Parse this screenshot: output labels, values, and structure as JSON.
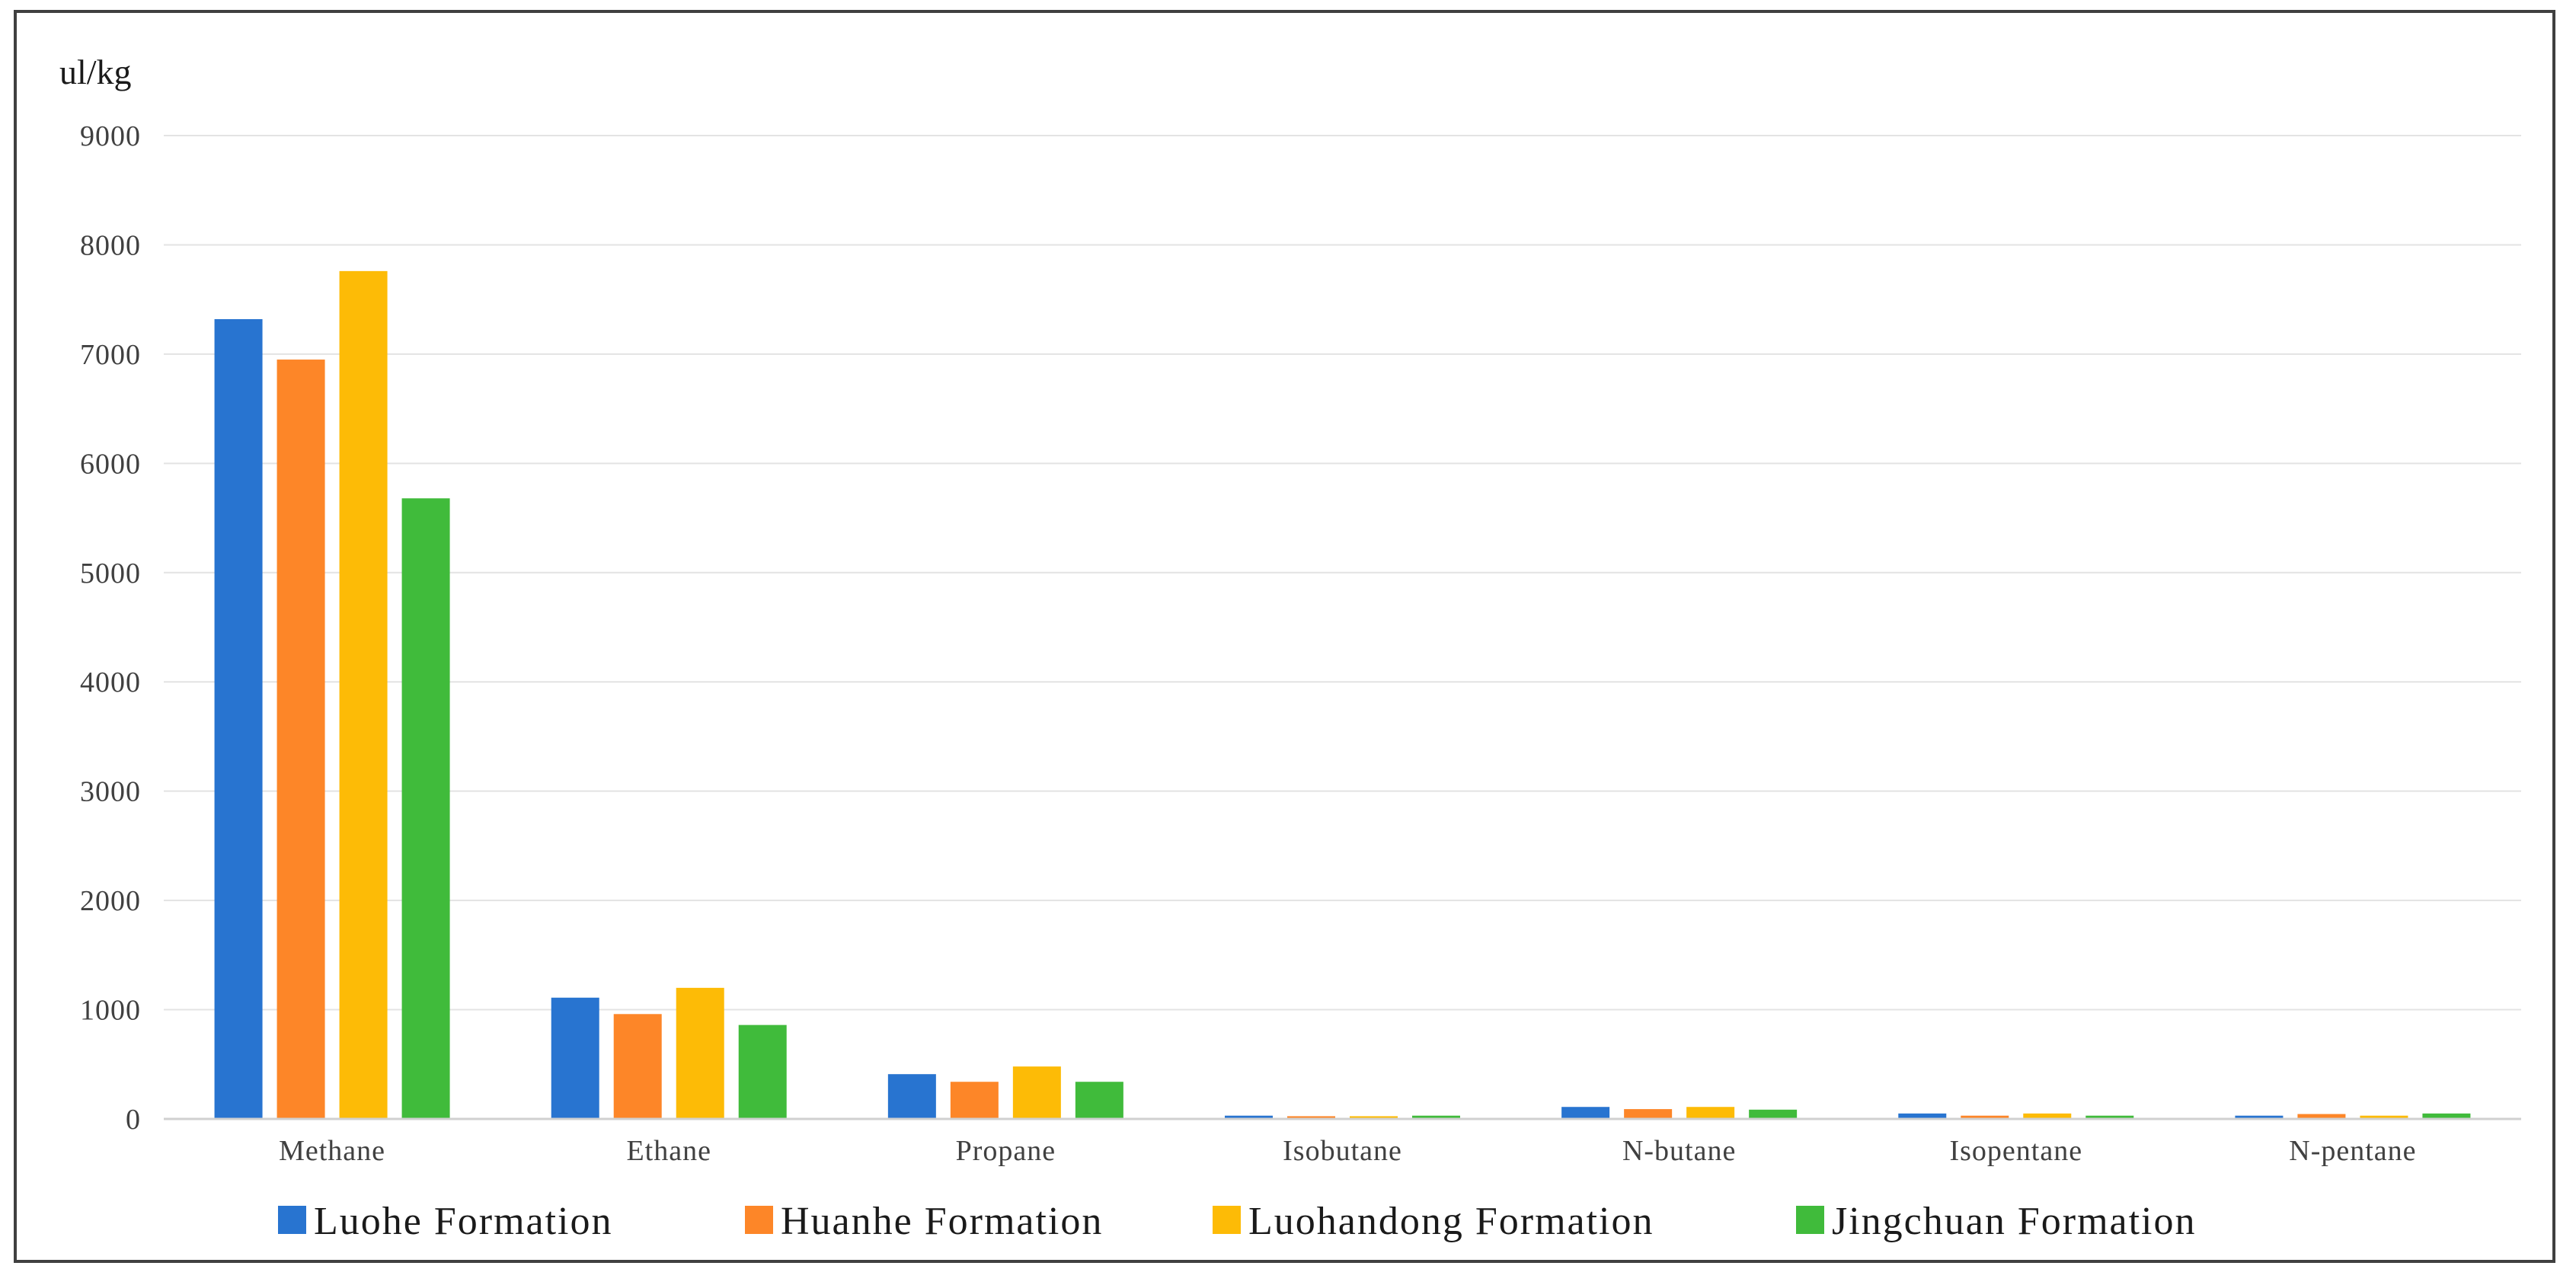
{
  "chart_data": {
    "type": "bar",
    "title": "",
    "ylabel": "ul/kg",
    "xlabel": "",
    "ylim": [
      0,
      9000
    ],
    "yticks": [
      0,
      1000,
      2000,
      3000,
      4000,
      5000,
      6000,
      7000,
      8000,
      9000
    ],
    "grid": "horizontal",
    "legend_position": "bottom",
    "categories": [
      "Methane",
      "Ethane",
      "Propane",
      "Isobutane",
      "N-butane",
      "Isopentane",
      "N-pentane"
    ],
    "series": [
      {
        "name": "Luohe Formation",
        "color": "#2874d0",
        "values": [
          7320,
          1110,
          410,
          30,
          110,
          50,
          30
        ]
      },
      {
        "name": "Huanhe Formation",
        "color": "#fd8628",
        "values": [
          6950,
          960,
          340,
          25,
          90,
          30,
          45
        ]
      },
      {
        "name": "Luohandong Formation",
        "color": "#fdbb06",
        "values": [
          7760,
          1200,
          480,
          25,
          110,
          50,
          30
        ]
      },
      {
        "name": "Jingchuan Formation",
        "color": "#40bb3b",
        "values": [
          5680,
          860,
          340,
          30,
          85,
          30,
          50
        ]
      }
    ]
  }
}
